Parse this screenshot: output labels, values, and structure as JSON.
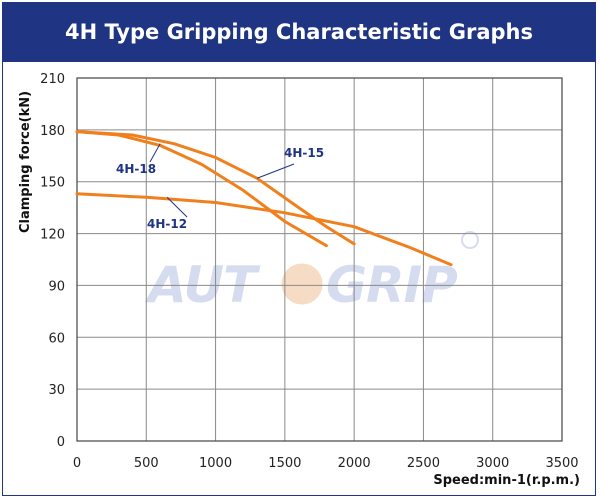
{
  "banner": {
    "title": "4H Type Gripping Characteristic Graphs"
  },
  "brand": {
    "watermark": "AUTOGRIP",
    "accent": "#1f3483",
    "line_color": "#f0801e"
  },
  "chart_data": {
    "type": "line",
    "title": "4H Type Gripping Characteristic Graphs",
    "xlabel": "Speed:min-1(r.p.m.)",
    "ylabel": "Clamping force(kN)",
    "xlim": [
      0,
      3500
    ],
    "ylim": [
      0,
      210
    ],
    "x_ticks": [
      0,
      500,
      1000,
      1500,
      2000,
      2500,
      3000,
      3500
    ],
    "y_ticks": [
      0,
      30,
      60,
      90,
      120,
      150,
      180,
      210
    ],
    "grid": true,
    "series": [
      {
        "name": "4H-18",
        "x": [
          0,
          300,
          600,
          900,
          1200,
          1500,
          1800
        ],
        "y": [
          179,
          177,
          171,
          160,
          145,
          127,
          113
        ]
      },
      {
        "name": "4H-15",
        "x": [
          0,
          400,
          700,
          1000,
          1300,
          1600,
          1800,
          2000
        ],
        "y": [
          179,
          177,
          172,
          164,
          152,
          135,
          124,
          114
        ]
      },
      {
        "name": "4H-12",
        "x": [
          0,
          500,
          1000,
          1500,
          2000,
          2400,
          2700
        ],
        "y": [
          143,
          141,
          138,
          132,
          124,
          112,
          102
        ]
      }
    ]
  }
}
